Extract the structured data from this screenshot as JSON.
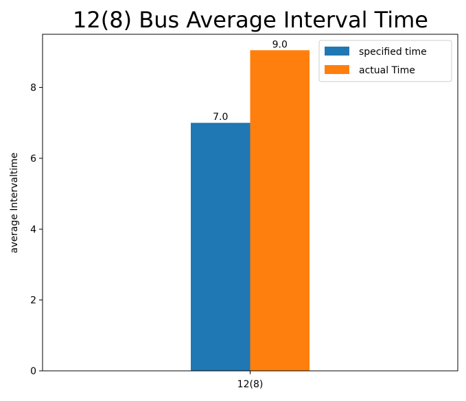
{
  "chart_data": {
    "type": "bar",
    "title": "12(8) Bus Average Interval Time",
    "xlabel": "",
    "ylabel": "average Intervaltime",
    "categories": [
      "12(8)"
    ],
    "series": [
      {
        "name": "specified time",
        "values": [
          7.0
        ],
        "color": "#1f77b4",
        "labels": [
          "7.0"
        ]
      },
      {
        "name": "actual Time",
        "values": [
          9.05
        ],
        "color": "#ff7f0e",
        "labels": [
          "9.0"
        ]
      }
    ],
    "ylim": [
      0,
      9.5
    ],
    "yticks": [
      0,
      2,
      4,
      6,
      8
    ],
    "grid": false,
    "legend": "top-right"
  }
}
